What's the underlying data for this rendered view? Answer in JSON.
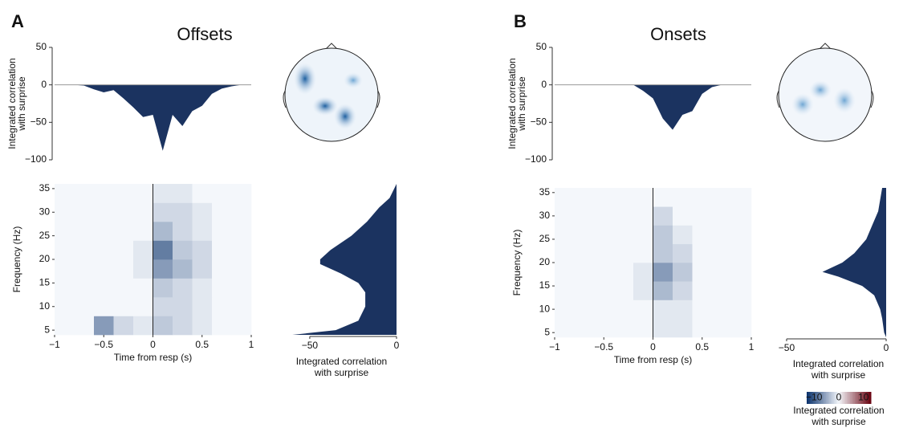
{
  "panels": [
    {
      "letter": "A",
      "title": "Offsets"
    },
    {
      "letter": "B",
      "title": "Onsets"
    }
  ],
  "chart_data": [
    {
      "type": "area",
      "x": [
        -1,
        -0.9,
        -0.8,
        -0.7,
        -0.6,
        -0.5,
        -0.4,
        -0.3,
        -0.2,
        -0.1,
        0,
        0.1,
        0.2,
        0.3,
        0.4,
        0.5,
        0.6,
        0.7,
        0.8,
        0.9,
        1
      ],
      "values": [
        0,
        0,
        0,
        -1,
        -6,
        -10,
        -7,
        -18,
        -30,
        -43,
        -40,
        -88,
        -40,
        -55,
        -35,
        -28,
        -12,
        -5,
        -2,
        0,
        0
      ],
      "color": "#1b3360",
      "xlim": [
        -1,
        1
      ],
      "ylim": [
        -100,
        50
      ],
      "yticks": [
        {
          "value": -100,
          "label": "−100"
        },
        {
          "value": -50,
          "label": "−50"
        },
        0,
        50
      ],
      "ylabel": [
        "Integrated correlation",
        "with surprise"
      ]
    },
    {
      "type": "heatmap",
      "xbins": [
        -1,
        -0.8,
        -0.6,
        -0.4,
        -0.2,
        0,
        0.2,
        0.4,
        0.6,
        0.8,
        1
      ],
      "ybins": [
        4,
        8,
        12,
        16,
        20,
        24,
        28,
        32,
        36
      ],
      "z": [
        [
          0,
          0,
          -6,
          -2,
          -1,
          -3,
          -2,
          -1,
          0,
          0
        ],
        [
          0,
          0,
          0,
          0,
          0,
          -2,
          -2,
          -1,
          0,
          0
        ],
        [
          0,
          0,
          0,
          0,
          0,
          -3,
          -2,
          -1,
          0,
          0
        ],
        [
          0,
          0,
          0,
          0,
          -1,
          -6,
          -4,
          -2,
          0,
          0
        ],
        [
          0,
          0,
          0,
          0,
          -1,
          -8,
          -3,
          -2,
          0,
          0
        ],
        [
          0,
          0,
          0,
          0,
          0,
          -4,
          -2,
          -1,
          0,
          0
        ],
        [
          0,
          0,
          0,
          0,
          0,
          -2,
          -2,
          -1,
          0,
          0
        ],
        [
          0,
          0,
          0,
          0,
          0,
          -1,
          -1,
          0,
          0,
          0
        ]
      ],
      "xlim": [
        -1,
        1
      ],
      "ylim": [
        4,
        36
      ],
      "xticks": [
        {
          "value": -1,
          "label": "−1"
        },
        {
          "value": -0.5,
          "label": "−0.5"
        },
        0,
        0.5,
        1
      ],
      "yticks": [
        5,
        10,
        15,
        20,
        25,
        30,
        35
      ],
      "xlabel": "Time from resp (s)",
      "ylabel": "Frequency (Hz)"
    },
    {
      "type": "area-h",
      "y": [
        4,
        5,
        7,
        10,
        13,
        15,
        17,
        19,
        20,
        22,
        25,
        28,
        31,
        33,
        36
      ],
      "values": [
        -60,
        -35,
        -22,
        -18,
        -18,
        -22,
        -32,
        -44,
        -44,
        -38,
        -26,
        -17,
        -10,
        -4,
        0
      ],
      "color": "#1b3360",
      "xlim": [
        -68,
        0
      ],
      "ylim": [
        4,
        36
      ],
      "xticks": [
        {
          "value": -50,
          "label": "−50"
        },
        0
      ],
      "xlabel": [
        "Integrated correlation",
        "with surprise"
      ]
    },
    {
      "type": "area",
      "x": [
        -1,
        -0.9,
        -0.8,
        -0.7,
        -0.6,
        -0.5,
        -0.4,
        -0.3,
        -0.2,
        -0.1,
        0,
        0.1,
        0.2,
        0.3,
        0.4,
        0.5,
        0.6,
        0.7,
        0.8,
        0.9,
        1
      ],
      "values": [
        0,
        0,
        0,
        0,
        0,
        0,
        0,
        0,
        0,
        -8,
        -18,
        -45,
        -60,
        -40,
        -35,
        -12,
        -3,
        0,
        0,
        0,
        0
      ],
      "color": "#1b3360",
      "xlim": [
        -1,
        1
      ],
      "ylim": [
        -100,
        50
      ],
      "yticks": [
        {
          "value": -100,
          "label": "−100"
        },
        {
          "value": -50,
          "label": "−50"
        },
        0,
        50
      ],
      "ylabel": [
        "Integrated correlation",
        "with surprise"
      ]
    },
    {
      "type": "heatmap",
      "xbins": [
        -1,
        -0.8,
        -0.6,
        -0.4,
        -0.2,
        0,
        0.2,
        0.4,
        0.6,
        0.8,
        1
      ],
      "ybins": [
        4,
        8,
        12,
        16,
        20,
        24,
        28,
        32,
        36
      ],
      "z": [
        [
          0,
          0,
          0,
          0,
          0,
          -1,
          -1,
          0,
          0,
          0
        ],
        [
          0,
          0,
          0,
          0,
          0,
          -1,
          -1,
          0,
          0,
          0
        ],
        [
          0,
          0,
          0,
          0,
          -1,
          -4,
          -2,
          0,
          0,
          0
        ],
        [
          0,
          0,
          0,
          0,
          -1,
          -6,
          -3,
          0,
          0,
          0
        ],
        [
          0,
          0,
          0,
          0,
          0,
          -3,
          -2,
          0,
          0,
          0
        ],
        [
          0,
          0,
          0,
          0,
          0,
          -3,
          -1,
          0,
          0,
          0
        ],
        [
          0,
          0,
          0,
          0,
          0,
          -2,
          0,
          0,
          0,
          0
        ],
        [
          0,
          0,
          0,
          0,
          0,
          0,
          0,
          0,
          0,
          0
        ]
      ],
      "xlim": [
        -1,
        1
      ],
      "ylim": [
        4,
        36
      ],
      "xticks": [
        {
          "value": -1,
          "label": "−1"
        },
        {
          "value": -0.5,
          "label": "−0.5"
        },
        0,
        0.5,
        1
      ],
      "yticks": [
        5,
        10,
        15,
        20,
        25,
        30,
        35
      ],
      "xlabel": "Time from resp (s)",
      "ylabel": "Frequency (Hz)"
    },
    {
      "type": "area-h",
      "y": [
        4,
        5,
        8,
        10,
        13,
        15,
        17,
        18,
        20,
        22,
        25,
        28,
        31,
        36
      ],
      "values": [
        0,
        -1,
        -2,
        -3,
        -6,
        -12,
        -24,
        -32,
        -22,
        -16,
        -10,
        -7,
        -4,
        -2
      ],
      "color": "#1b3360",
      "xlim": [
        -52,
        0
      ],
      "ylim": [
        4,
        36
      ],
      "xticks": [
        {
          "value": -50,
          "label": "−50"
        },
        0
      ],
      "xlabel": [
        "Integrated correlation",
        "with surprise"
      ]
    },
    {
      "type": "colorbar",
      "xlim": [
        -13,
        13
      ],
      "xticks": [
        {
          "value": -10,
          "label": "−10"
        },
        0,
        10
      ],
      "xlabel": [
        "Integrated correlation",
        "with surprise"
      ]
    }
  ]
}
